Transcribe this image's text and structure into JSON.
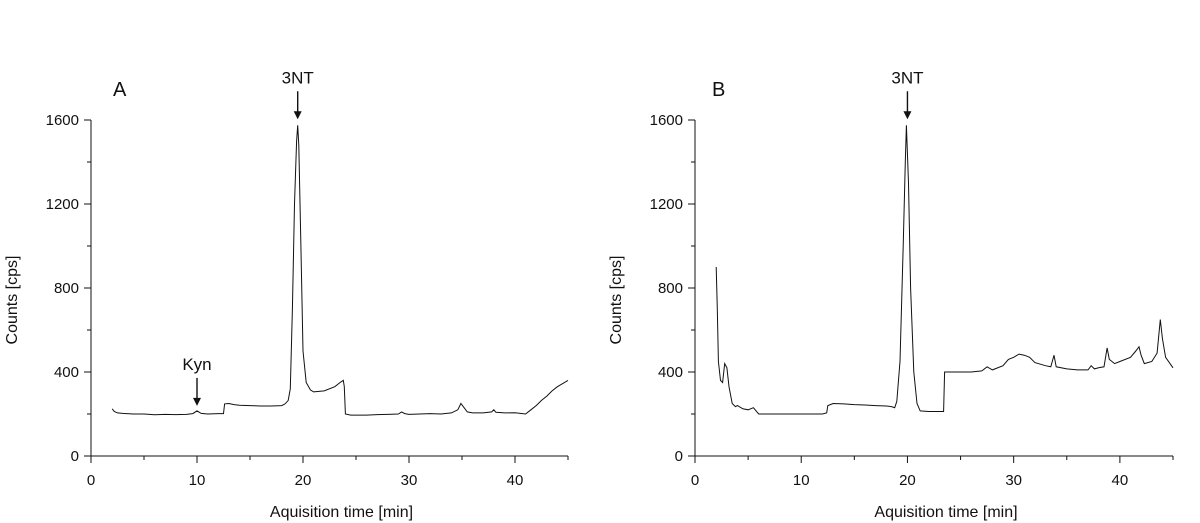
{
  "chart_data": [
    {
      "panel": "A",
      "type": "line",
      "xlabel": "Aquisition time [min]",
      "ylabel": "Counts [cps]",
      "xlim": [
        0,
        45
      ],
      "ylim": [
        0,
        1600
      ],
      "xticks": [
        0,
        10,
        20,
        30,
        40
      ],
      "yticks": [
        0,
        400,
        800,
        1200,
        1600
      ],
      "grid": false,
      "annotations": [
        {
          "text": "Kyn",
          "x": 10,
          "y": 210
        },
        {
          "text": "3NT",
          "x": 19.5,
          "y": 1575
        }
      ],
      "series": [
        {
          "x": [
            2.0,
            2.2,
            2.5,
            3.0,
            4.0,
            5.0,
            6.0,
            7.0,
            8.0,
            9.0,
            9.6,
            10.0,
            10.4,
            11.0,
            12.0,
            12.5,
            12.6,
            13.0,
            13.5,
            14.0,
            15.0,
            16.0,
            17.0,
            18.0,
            18.3,
            18.6,
            18.8,
            19.0,
            19.2,
            19.4,
            19.5,
            19.6,
            19.8,
            20.0,
            20.3,
            20.7,
            21.0,
            22.0,
            23.0,
            23.5,
            23.8,
            23.9,
            24.0,
            24.5,
            25.0,
            26.0,
            27.0,
            28.0,
            29.0,
            29.3,
            29.6,
            30.0,
            31.0,
            32.0,
            33.0,
            34.0,
            34.6,
            34.9,
            35.2,
            35.5,
            36.0,
            37.0,
            37.8,
            38.0,
            38.2,
            39.0,
            40.0,
            41.0,
            41.5,
            42.0,
            42.5,
            43.0,
            43.5,
            44.0,
            44.5,
            45.0
          ],
          "y": [
            225,
            212,
            205,
            203,
            200,
            200,
            196,
            198,
            197,
            198,
            202,
            215,
            203,
            200,
            202,
            202,
            248,
            250,
            245,
            242,
            240,
            238,
            238,
            240,
            248,
            265,
            320,
            700,
            1200,
            1500,
            1575,
            1480,
            1000,
            500,
            350,
            315,
            305,
            310,
            330,
            350,
            360,
            330,
            200,
            195,
            195,
            195,
            197,
            198,
            200,
            210,
            202,
            198,
            200,
            202,
            200,
            205,
            220,
            250,
            230,
            210,
            205,
            205,
            210,
            220,
            208,
            205,
            206,
            200,
            220,
            240,
            265,
            285,
            310,
            330,
            345,
            360
          ]
        }
      ]
    },
    {
      "panel": "B",
      "type": "line",
      "xlabel": "Aquisition time [min]",
      "ylabel": "Counts [cps]",
      "xlim": [
        0,
        45
      ],
      "ylim": [
        0,
        1600
      ],
      "xticks": [
        0,
        10,
        20,
        30,
        40
      ],
      "yticks": [
        0,
        400,
        800,
        1200,
        1600
      ],
      "grid": false,
      "annotations": [
        {
          "text": "3NT",
          "x": 20,
          "y": 1575
        }
      ],
      "series": [
        {
          "x": [
            2.0,
            2.1,
            2.2,
            2.4,
            2.6,
            2.8,
            3.0,
            3.2,
            3.5,
            3.8,
            4.0,
            4.5,
            5.0,
            5.5,
            6.0,
            7.0,
            8.0,
            9.0,
            10.0,
            11.0,
            12.0,
            12.4,
            12.5,
            13.0,
            14.0,
            15.0,
            16.0,
            17.0,
            18.0,
            18.5,
            18.8,
            19.0,
            19.3,
            19.6,
            19.8,
            19.9,
            20.1,
            20.3,
            20.6,
            20.9,
            21.2,
            22.0,
            23.0,
            23.4,
            23.5,
            24.0,
            25.0,
            26.0,
            27.0,
            27.5,
            28.0,
            29.0,
            29.5,
            30.0,
            30.5,
            31.0,
            31.5,
            32.0,
            33.0,
            33.5,
            33.8,
            34.0,
            35.0,
            36.0,
            37.0,
            37.3,
            37.6,
            38.0,
            38.5,
            38.8,
            39.0,
            39.5,
            40.0,
            41.0,
            41.5,
            41.8,
            42.0,
            42.3,
            43.0,
            43.5,
            43.8,
            44.0,
            44.3,
            45.0
          ],
          "y": [
            900,
            700,
            450,
            360,
            350,
            440,
            420,
            330,
            250,
            235,
            240,
            225,
            220,
            230,
            200,
            200,
            200,
            200,
            200,
            200,
            200,
            205,
            240,
            250,
            248,
            245,
            243,
            240,
            238,
            235,
            230,
            260,
            450,
            1000,
            1400,
            1575,
            1300,
            800,
            400,
            250,
            215,
            212,
            212,
            212,
            400,
            400,
            400,
            400,
            405,
            425,
            410,
            430,
            460,
            470,
            485,
            480,
            470,
            445,
            430,
            425,
            480,
            425,
            415,
            410,
            410,
            430,
            415,
            420,
            425,
            515,
            460,
            440,
            450,
            470,
            500,
            520,
            480,
            440,
            450,
            490,
            650,
            560,
            470,
            420
          ]
        }
      ]
    }
  ]
}
